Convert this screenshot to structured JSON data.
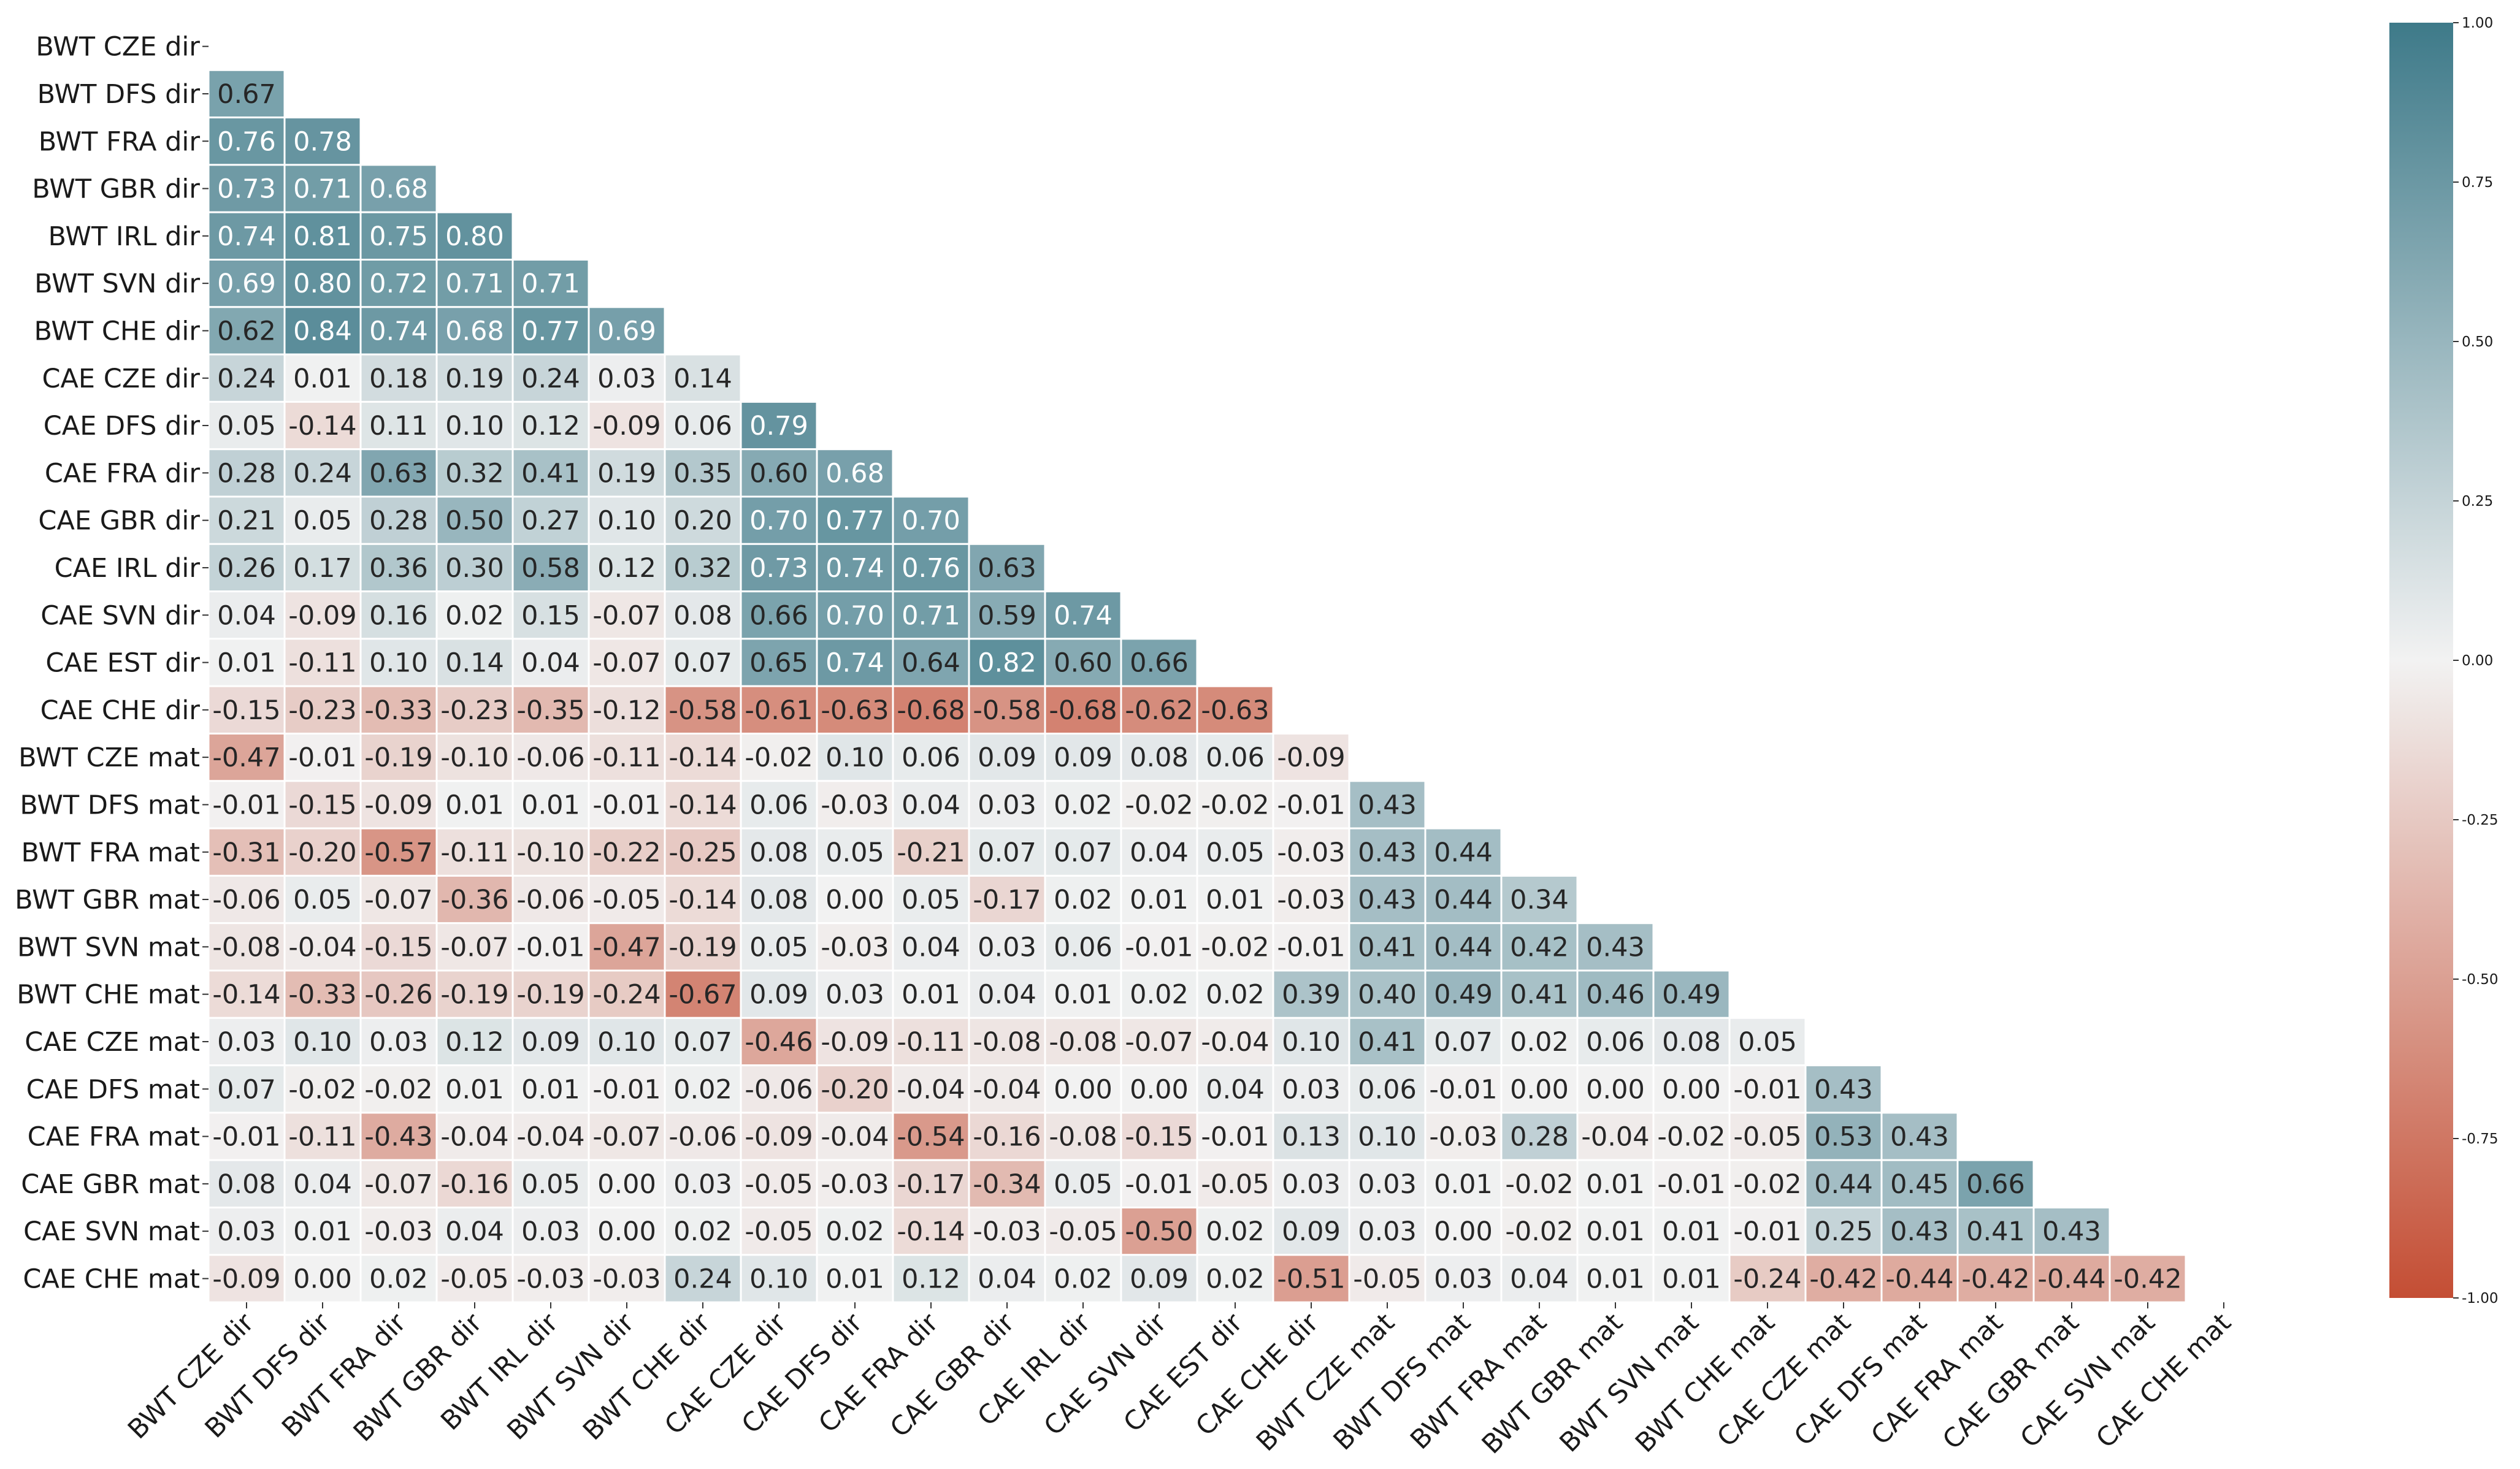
{
  "chart_data": {
    "type": "heatmap",
    "subtype": "lower-triangle correlation matrix",
    "annotation_format": "2 decimals",
    "labels": [
      "BWT CZE dir",
      "BWT DFS dir",
      "BWT FRA dir",
      "BWT GBR dir",
      "BWT IRL dir",
      "BWT SVN dir",
      "BWT CHE dir",
      "CAE CZE dir",
      "CAE DFS dir",
      "CAE FRA dir",
      "CAE GBR dir",
      "CAE IRL dir",
      "CAE SVN dir",
      "CAE EST dir",
      "CAE CHE dir",
      "BWT CZE mat",
      "BWT DFS mat",
      "BWT FRA mat",
      "BWT GBR mat",
      "BWT SVN mat",
      "BWT CHE mat",
      "CAE CZE mat",
      "CAE DFS mat",
      "CAE FRA mat",
      "CAE GBR mat",
      "CAE SVN mat",
      "CAE CHE mat"
    ],
    "values": [
      [],
      [
        0.67
      ],
      [
        0.76,
        0.78
      ],
      [
        0.73,
        0.71,
        0.68
      ],
      [
        0.74,
        0.81,
        0.75,
        0.8
      ],
      [
        0.69,
        0.8,
        0.72,
        0.71,
        0.71
      ],
      [
        0.62,
        0.84,
        0.74,
        0.68,
        0.77,
        0.69
      ],
      [
        0.24,
        0.01,
        0.18,
        0.19,
        0.24,
        0.03,
        0.14
      ],
      [
        0.05,
        -0.14,
        0.11,
        0.1,
        0.12,
        -0.09,
        0.06,
        0.79
      ],
      [
        0.28,
        0.24,
        0.63,
        0.32,
        0.41,
        0.19,
        0.35,
        0.6,
        0.68
      ],
      [
        0.21,
        0.05,
        0.28,
        0.5,
        0.27,
        0.1,
        0.2,
        0.7,
        0.77,
        0.7
      ],
      [
        0.26,
        0.17,
        0.36,
        0.3,
        0.58,
        0.12,
        0.32,
        0.73,
        0.74,
        0.76,
        0.63
      ],
      [
        0.04,
        -0.09,
        0.16,
        0.02,
        0.15,
        -0.07,
        0.08,
        0.66,
        0.7,
        0.71,
        0.59,
        0.74
      ],
      [
        0.01,
        -0.11,
        0.1,
        0.14,
        0.04,
        -0.07,
        0.07,
        0.65,
        0.74,
        0.64,
        0.82,
        0.6,
        0.66
      ],
      [
        -0.15,
        -0.23,
        -0.33,
        -0.23,
        -0.35,
        -0.12,
        -0.58,
        -0.61,
        -0.63,
        -0.68,
        -0.58,
        -0.68,
        -0.62,
        -0.63
      ],
      [
        -0.47,
        -0.01,
        -0.19,
        -0.1,
        -0.06,
        -0.11,
        -0.14,
        -0.02,
        0.1,
        0.06,
        0.09,
        0.09,
        0.08,
        0.06,
        -0.09
      ],
      [
        -0.01,
        -0.15,
        -0.09,
        0.01,
        0.01,
        -0.01,
        -0.14,
        0.06,
        -0.03,
        0.04,
        0.03,
        0.02,
        -0.02,
        -0.02,
        -0.01,
        0.43
      ],
      [
        -0.31,
        -0.2,
        -0.57,
        -0.11,
        -0.1,
        -0.22,
        -0.25,
        0.08,
        0.05,
        -0.21,
        0.07,
        0.07,
        0.04,
        0.05,
        -0.03,
        0.43,
        0.44
      ],
      [
        -0.06,
        0.05,
        -0.07,
        -0.36,
        -0.06,
        -0.05,
        -0.14,
        0.08,
        0.0,
        0.05,
        -0.17,
        0.02,
        0.01,
        0.01,
        -0.03,
        0.43,
        0.44,
        0.34
      ],
      [
        -0.08,
        -0.04,
        -0.15,
        -0.07,
        -0.01,
        -0.47,
        -0.19,
        0.05,
        -0.03,
        0.04,
        0.03,
        0.06,
        -0.01,
        -0.02,
        -0.01,
        0.41,
        0.44,
        0.42,
        0.43
      ],
      [
        -0.14,
        -0.33,
        -0.26,
        -0.19,
        -0.19,
        -0.24,
        -0.67,
        0.09,
        0.03,
        0.01,
        0.04,
        0.01,
        0.02,
        0.02,
        0.39,
        0.4,
        0.49,
        0.41,
        0.46,
        0.49
      ],
      [
        0.03,
        0.1,
        0.03,
        0.12,
        0.09,
        0.1,
        0.07,
        -0.46,
        -0.09,
        -0.11,
        -0.08,
        -0.08,
        -0.07,
        -0.04,
        0.1,
        0.41,
        0.07,
        0.02,
        0.06,
        0.08,
        0.05
      ],
      [
        0.07,
        -0.02,
        -0.02,
        0.01,
        0.01,
        -0.01,
        0.02,
        -0.06,
        -0.2,
        -0.04,
        -0.04,
        0.0,
        0.0,
        0.04,
        0.03,
        0.06,
        -0.01,
        0.0,
        0.0,
        0.0,
        -0.01,
        0.43
      ],
      [
        -0.01,
        -0.11,
        -0.43,
        -0.04,
        -0.04,
        -0.07,
        -0.06,
        -0.09,
        -0.04,
        -0.54,
        -0.16,
        -0.08,
        -0.15,
        -0.01,
        0.13,
        0.1,
        -0.03,
        0.28,
        -0.04,
        -0.02,
        -0.05,
        0.53,
        0.43
      ],
      [
        0.08,
        0.04,
        -0.07,
        -0.16,
        0.05,
        0.0,
        0.03,
        -0.05,
        -0.03,
        -0.17,
        -0.34,
        0.05,
        -0.01,
        -0.05,
        0.03,
        0.03,
        0.01,
        -0.02,
        0.01,
        -0.01,
        -0.02,
        0.44,
        0.45,
        0.66
      ],
      [
        0.03,
        0.01,
        -0.03,
        0.04,
        0.03,
        0.0,
        0.02,
        -0.05,
        0.02,
        -0.14,
        -0.03,
        -0.05,
        -0.5,
        0.02,
        0.09,
        0.03,
        0.0,
        -0.02,
        0.01,
        0.01,
        -0.01,
        0.25,
        0.43,
        0.41,
        0.43
      ],
      [
        -0.09,
        0.0,
        0.02,
        -0.05,
        -0.03,
        -0.03,
        0.24,
        0.1,
        0.01,
        0.12,
        0.04,
        0.02,
        0.09,
        0.02,
        -0.51,
        -0.05,
        0.03,
        0.04,
        0.01,
        0.01,
        -0.24,
        -0.42,
        -0.44,
        -0.42,
        -0.44,
        -0.42
      ]
    ],
    "colorbar": {
      "range": [
        -1.0,
        1.0
      ],
      "ticks": [
        "1.00",
        "0.75",
        "0.50",
        "0.25",
        "0.00",
        "-0.25",
        "-0.50",
        "-0.75",
        "-1.00"
      ],
      "low_color": "#c44e34",
      "mid_color": "#f2f2f2",
      "high_color": "#3e7a89"
    },
    "title": "",
    "xlabel": "",
    "ylabel": "",
    "grid": false
  }
}
